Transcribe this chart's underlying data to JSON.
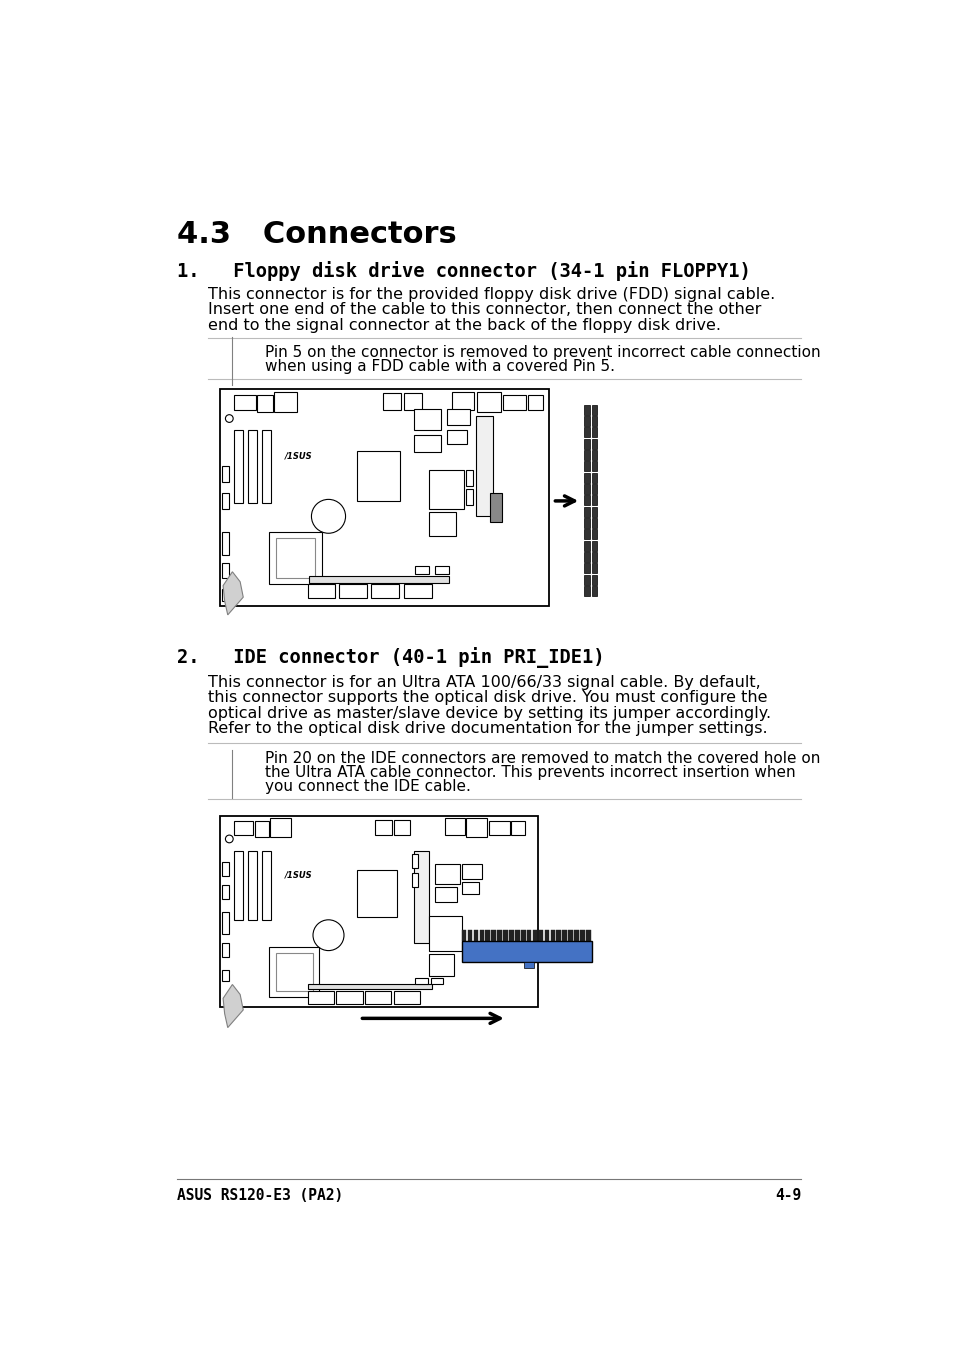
{
  "bg_color": "#ffffff",
  "title": "4.3   Connectors",
  "section1_heading": "1.   Floppy disk drive connector (34-1 pin FLOPPY1)",
  "section1_body_line1": "This connector is for the provided floppy disk drive (FDD) signal cable.",
  "section1_body_line2": "Insert one end of the cable to this connector, then connect the other",
  "section1_body_line3": "end to the signal connector at the back of the floppy disk drive.",
  "note1_text_line1": "Pin 5 on the connector is removed to prevent incorrect cable connection",
  "note1_text_line2": "when using a FDD cable with a covered Pin 5.",
  "section2_heading": "2.   IDE connector (40-1 pin PRI_IDE1)",
  "section2_body_line1": "This connector is for an Ultra ATA 100/66/33 signal cable. By default,",
  "section2_body_line2": "this connector supports the optical disk drive. You must configure the",
  "section2_body_line3": "optical drive as master/slave device by setting its jumper accordingly.",
  "section2_body_line4": "Refer to the optical disk drive documentation for the jumper settings.",
  "note2_text_line1": "Pin 20 on the IDE connectors are removed to match the covered hole on",
  "note2_text_line2": "the Ultra ATA cable connector. This prevents incorrect insertion when",
  "note2_text_line3": "you connect the IDE cable.",
  "footer_left": "ASUS RS120-E3 (PA2)",
  "footer_right": "4-9",
  "ide_connector_color": "#4472c4",
  "line_color": "#bbbbbb",
  "text_color": "#000000"
}
